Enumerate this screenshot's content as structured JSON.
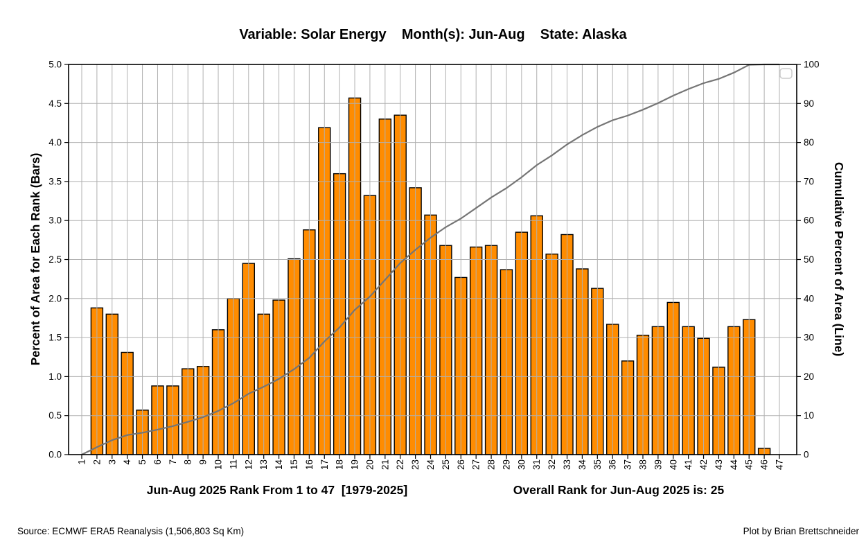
{
  "title": "Variable: Solar Energy    Month(s): Jun-Aug    State: Alaska",
  "footer": {
    "source": "Source: ECMWF ERA5 Reanalysis (1,506,803 Sq Km)",
    "credit": "Plot by Brian Brettschneider"
  },
  "chart_data": {
    "type": "bar",
    "title": "Variable: Solar Energy    Month(s): Jun-Aug    State: Alaska",
    "xlabel_left": "Jun-Aug 2025 Rank From 1 to 47  [1979-2025]",
    "xlabel_right": "Overall Rank for Jun-Aug 2025 is: 25",
    "ylabel_left": "Percent of Area for Each Rank (Bars)",
    "ylabel_right": "Cumulative Percent of Area (Line)",
    "categories": [
      1,
      2,
      3,
      4,
      5,
      6,
      7,
      8,
      9,
      10,
      11,
      12,
      13,
      14,
      15,
      16,
      17,
      18,
      19,
      20,
      21,
      22,
      23,
      24,
      25,
      26,
      27,
      28,
      29,
      30,
      31,
      32,
      33,
      34,
      35,
      36,
      37,
      38,
      39,
      40,
      41,
      42,
      43,
      44,
      45,
      46,
      47
    ],
    "series": [
      {
        "name": "Percent of Area for Each Rank (Bars)",
        "type": "bar",
        "axis": "left",
        "color": "#FF8C00",
        "edge_color": "#000000",
        "values": [
          0,
          1.88,
          1.8,
          1.31,
          0.57,
          0.88,
          0.88,
          1.1,
          1.13,
          1.6,
          2.0,
          2.45,
          1.8,
          1.98,
          2.51,
          2.88,
          4.19,
          3.6,
          4.57,
          3.32,
          4.3,
          4.35,
          3.42,
          3.07,
          2.68,
          2.27,
          2.66,
          2.68,
          2.37,
          2.85,
          3.06,
          2.57,
          2.82,
          2.38,
          2.13,
          1.67,
          1.2,
          1.53,
          1.64,
          1.95,
          1.64,
          1.49,
          1.12,
          1.64,
          1.73,
          0.08,
          0
        ]
      },
      {
        "name": "Cumulative Percent of Area (Line)",
        "type": "line",
        "axis": "right",
        "color": "#757575",
        "values": [
          0,
          1.9,
          3.7,
          5.0,
          5.6,
          6.4,
          7.3,
          8.4,
          9.6,
          11.2,
          13.2,
          15.6,
          17.4,
          19.4,
          21.9,
          24.8,
          29.0,
          32.6,
          37.1,
          40.5,
          44.8,
          49.1,
          52.5,
          55.6,
          58.3,
          60.5,
          63.2,
          65.9,
          68.3,
          71.1,
          74.2,
          76.7,
          79.5,
          81.9,
          84.0,
          85.7,
          86.9,
          88.4,
          90.1,
          92.0,
          93.7,
          95.2,
          96.3,
          97.9,
          99.9,
          100.0,
          100.0
        ]
      }
    ],
    "left_axis": {
      "min": 0,
      "max": 5,
      "tick_step": 0.5,
      "tick_decimals": 1
    },
    "right_axis": {
      "min": 0,
      "max": 100,
      "tick_step": 10,
      "tick_decimals": 0
    },
    "grid": true,
    "grid_color": "#b0b0b0",
    "legend": "empty-box-top-right"
  }
}
